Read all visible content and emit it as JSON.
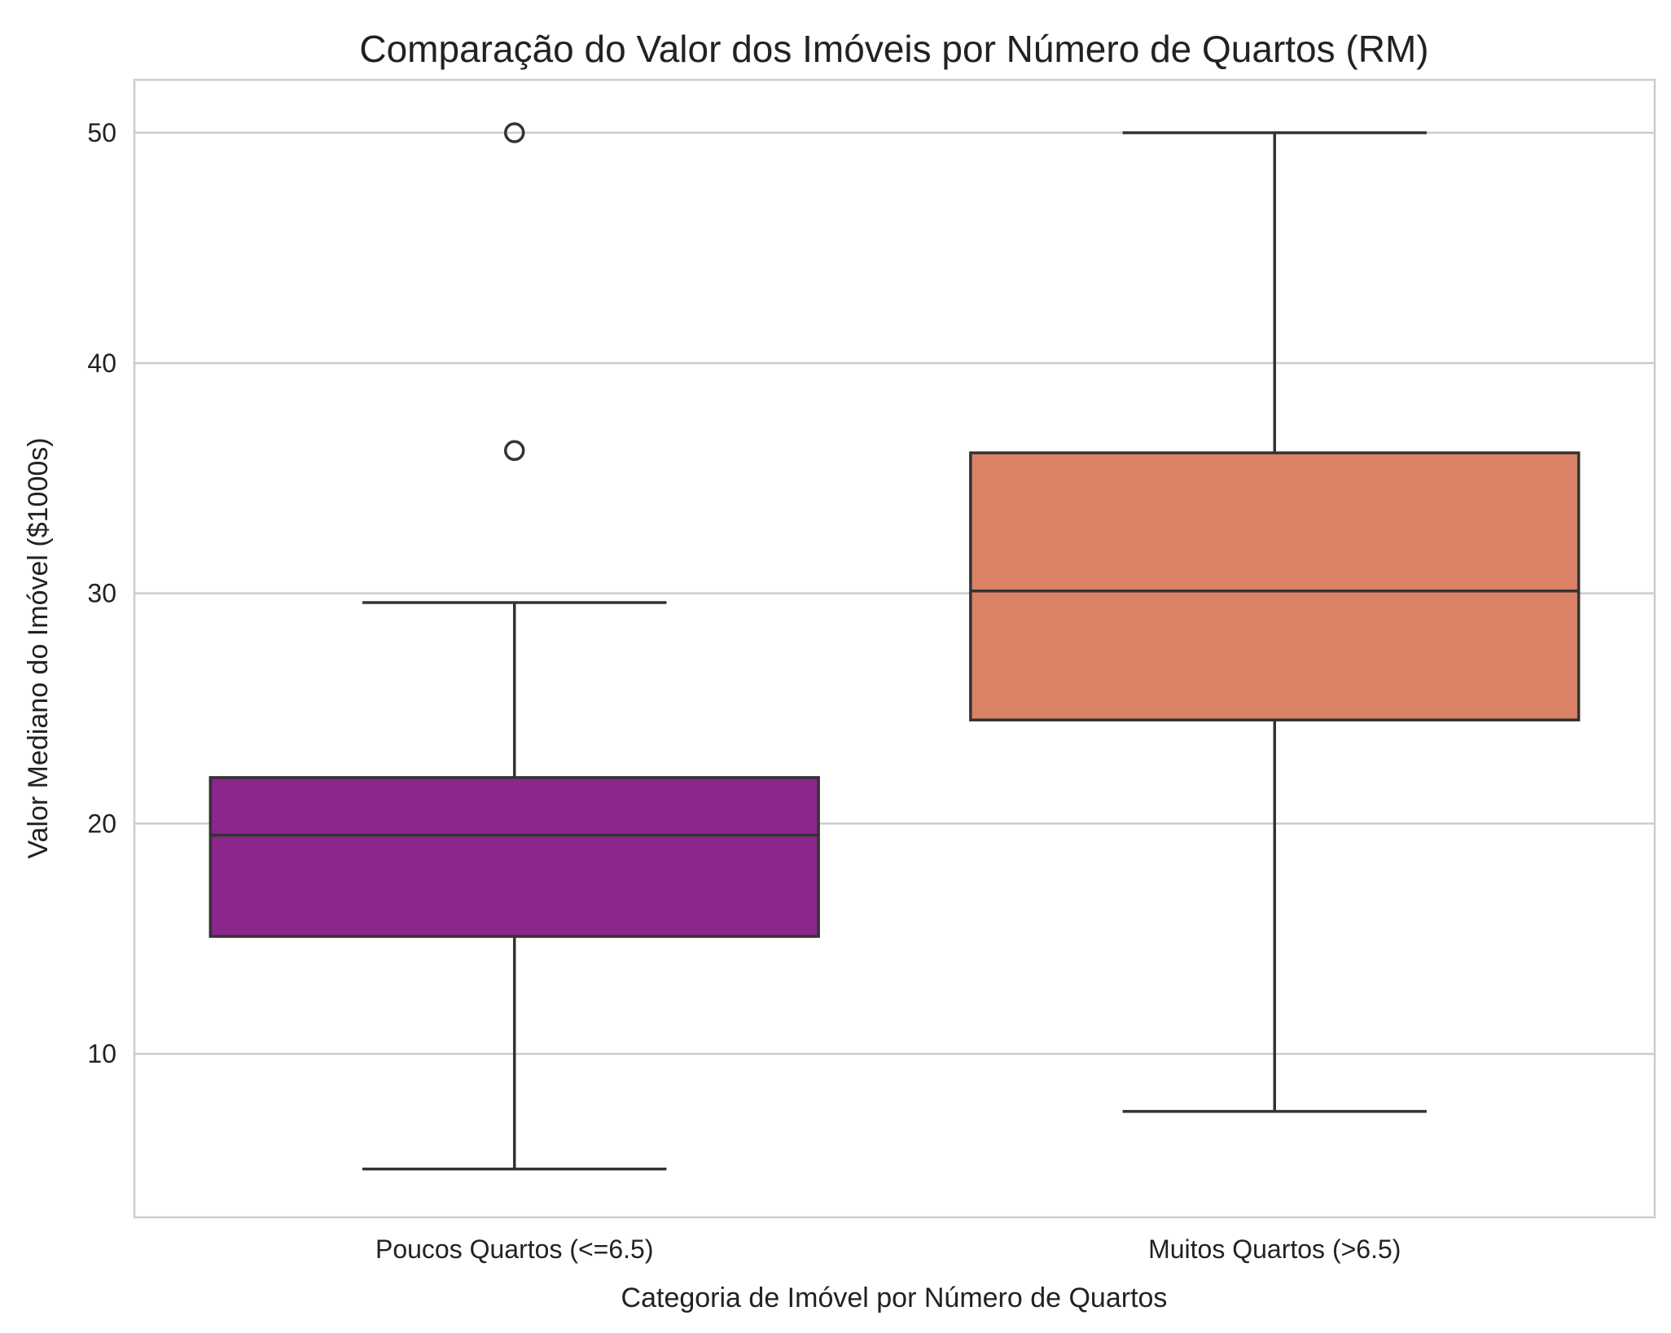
{
  "chart_data": {
    "type": "box",
    "title": "Comparação do Valor dos Imóveis por Número de Quartos (RM)",
    "xlabel": "Categoria de Imóvel por Número de Quartos",
    "ylabel": "Valor Mediano do Imóvel ($1000s)",
    "categories": [
      "Poucos Quartos (<=6.5)",
      "Muitos Quartos (>6.5)"
    ],
    "ylim": [
      2.9,
      52.3
    ],
    "yticks": [
      10,
      20,
      30,
      40,
      50
    ],
    "grid": true,
    "boxes": [
      {
        "category": "Poucos Quartos (<=6.5)",
        "whisker_low": 5.0,
        "q1": 15.1,
        "median": 19.5,
        "q3": 22.0,
        "whisker_high": 29.6,
        "outliers": [
          36.2,
          50.0
        ],
        "color": "#8b268b"
      },
      {
        "category": "Muitos Quartos (>6.5)",
        "whisker_low": 7.5,
        "q1": 24.5,
        "median": 30.1,
        "q3": 36.1,
        "whisker_high": 50.0,
        "outliers": [],
        "color": "#d98266"
      }
    ]
  }
}
